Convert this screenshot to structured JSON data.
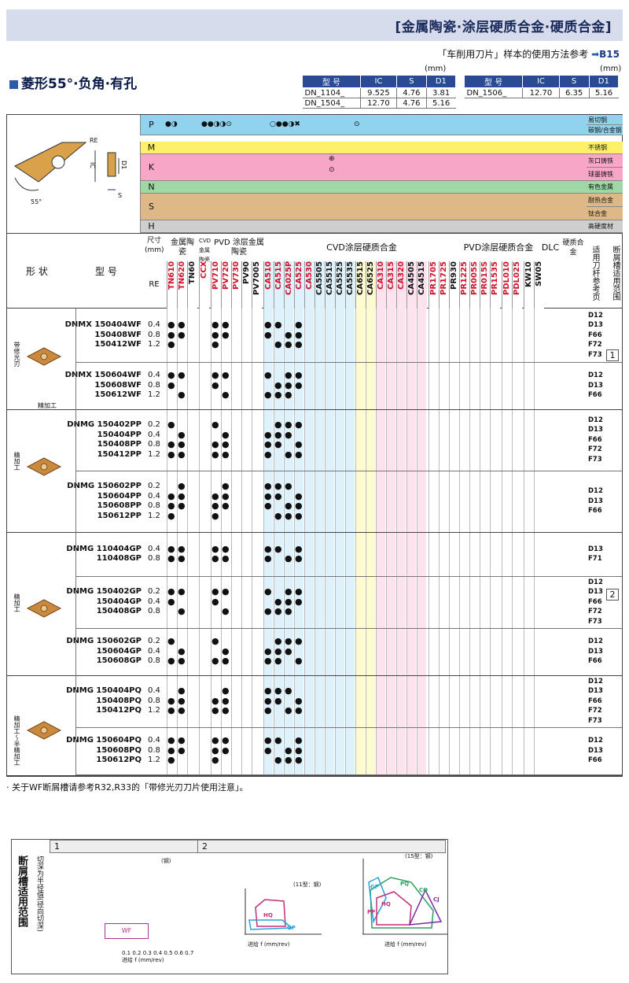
{
  "header": {
    "title": "[金属陶瓷·涂层硬质合金·硬质合金]",
    "ref_text": "「车削用刀片」样本的使用方法参考",
    "ref_page": "B15"
  },
  "section": {
    "title": "菱形55°·负角·有孔"
  },
  "spec_unit": "(mm)",
  "spec_headers": [
    "型 号",
    "IC",
    "S",
    "D1"
  ],
  "spec_left": [
    [
      "DN_1104_",
      "9.525",
      "4.76",
      "3.81"
    ],
    [
      "DN_1504_",
      "12.70",
      "4.76",
      "5.16"
    ]
  ],
  "spec_right": [
    [
      "DN_1506_",
      "12.70",
      "6.35",
      "5.16"
    ]
  ],
  "diagram": {
    "re": "RE",
    "ic": "IC",
    "d1": "D1",
    "s": "S",
    "angle": "55°"
  },
  "materials": [
    {
      "code": "P",
      "color": "#8fd3ef",
      "sub": [
        "易切钢",
        "碳钢/合金钢"
      ]
    },
    {
      "code": "M",
      "color": "#fff06a",
      "sub": [
        "不锈钢"
      ]
    },
    {
      "code": "K",
      "color": "#f7a6c8",
      "sub": [
        "灰口铸铁",
        "球墨铸铁"
      ]
    },
    {
      "code": "N",
      "color": "#9ed8a6",
      "sub": [
        "有色金属"
      ]
    },
    {
      "code": "S",
      "color": "#deb887",
      "sub": [
        "耐热合金",
        "钛合金"
      ]
    },
    {
      "code": "H",
      "color": "#cfcfcf",
      "sub": [
        "高硬度材"
      ]
    }
  ],
  "table_header": {
    "shape": "形 状",
    "model": "型 号",
    "size": "尺寸(mm)",
    "re": "RE",
    "cermet": "金属陶瓷",
    "cvd": "CVD 金属陶瓷",
    "pvd": "PVD 涂层金属陶瓷",
    "cvd_coated": "CVD涂层硬质合金",
    "pvd_coated": "PVD涂层硬质合金",
    "dlc": "DLC",
    "carbide": "硬质合金",
    "holder": "适用刀杆参考页",
    "chipbreaker": "断屑槽适用范围"
  },
  "grades": [
    "TN610",
    "TN620",
    "TN60",
    "CCX",
    "PV710",
    "PV720",
    "PV730",
    "PV90",
    "PV7005",
    "CA510",
    "CA515",
    "CA025P",
    "CA525",
    "CA530",
    "CA5505",
    "CA5515",
    "CA5525",
    "CA5535",
    "CA6515",
    "CA6525",
    "CA310",
    "CA315",
    "CA320",
    "CA4505",
    "CA4515",
    "PR1705",
    "PR1725",
    "PR930",
    "PR1225",
    "PR005S",
    "PR015S",
    "PR1535",
    "PDL010",
    "PDL025",
    "KW10",
    "SW05"
  ],
  "groups": [
    {
      "label": "带修光刃",
      "sub": "精加工",
      "rows": [
        {
          "models": [
            "DNMX 150404WF",
            "150408WF",
            "150412WF"
          ],
          "re": [
            "0.4",
            "0.8",
            "1.2"
          ],
          "pages": [
            "D12",
            "D13",
            "F66",
            "F72",
            "F73"
          ]
        },
        {
          "models": [
            "DNMX 150604WF",
            "150608WF",
            "150612WF"
          ],
          "re": [
            "0.4",
            "0.8",
            "1.2"
          ],
          "pages": [
            "D12",
            "D13",
            "F66"
          ]
        }
      ]
    },
    {
      "label": "精加工",
      "sub": "",
      "rows": [
        {
          "models": [
            "DNMG 150402PP",
            "150404PP",
            "150408PP",
            "150412PP"
          ],
          "re": [
            "0.2",
            "0.4",
            "0.8",
            "1.2"
          ],
          "pages": [
            "D12",
            "D13",
            "F66",
            "F72",
            "F73"
          ]
        },
        {
          "models": [
            "DNMG 150602PP",
            "150604PP",
            "150608PP",
            "150612PP"
          ],
          "re": [
            "0.2",
            "0.4",
            "0.8",
            "1.2"
          ],
          "pages": [
            "D12",
            "D13",
            "F66"
          ]
        }
      ]
    },
    {
      "label": "精加工",
      "sub": "",
      "rows": [
        {
          "models": [
            "DNMG 110404GP",
            "110408GP"
          ],
          "re": [
            "0.4",
            "0.8"
          ],
          "pages": [
            "D13",
            "F71"
          ]
        },
        {
          "models": [
            "DNMG 150402GP",
            "150404GP",
            "150408GP"
          ],
          "re": [
            "0.2",
            "0.4",
            "0.8"
          ],
          "pages": [
            "D12",
            "D13",
            "F66",
            "F72",
            "F73"
          ]
        },
        {
          "models": [
            "DNMG 150602GP",
            "150604GP",
            "150608GP"
          ],
          "re": [
            "0.2",
            "0.4",
            "0.8"
          ],
          "pages": [
            "D12",
            "D13",
            "F66"
          ]
        }
      ]
    },
    {
      "label": "精加工～半精加工",
      "sub": "",
      "rows": [
        {
          "models": [
            "DNMG 150404PQ",
            "150408PQ",
            "150412PQ"
          ],
          "re": [
            "0.4",
            "0.8",
            "1.2"
          ],
          "pages": [
            "D12",
            "D13",
            "F66",
            "F72",
            "F73"
          ]
        },
        {
          "models": [
            "DNMG 150604PQ",
            "150608PQ",
            "150612PQ"
          ],
          "re": [
            "0.4",
            "0.8",
            "1.2"
          ],
          "pages": [
            "D12",
            "D13",
            "F66"
          ]
        }
      ]
    }
  ],
  "range_marks": [
    "1",
    "2"
  ],
  "note": "· 关于WF断屑槽请参考R32,R33的「带修光刃刀片使用注意」。",
  "bottom": {
    "title": "断屑槽适用范围",
    "ylabel": "切深为半径值(径向切深)",
    "p1": "1",
    "p2": "2",
    "wf": "WF",
    "hq": "HQ",
    "gp": "GP",
    "pq": "PQ",
    "cq": "CQ",
    "cj": "CJ",
    "pp": "PP",
    "steel11": "(11型：钢)",
    "steel15": "(15型：钢)",
    "steel": "(钢)",
    "xlabel": "进给 f (mm/rev)",
    "ap": "切深 ap (mm)"
  }
}
